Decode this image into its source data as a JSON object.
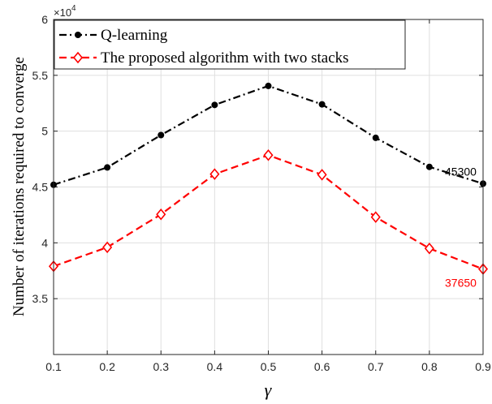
{
  "chart_data": {
    "type": "line",
    "xlabel": "γ",
    "ylabel": "Number of iterations required to converge",
    "x": [
      0.1,
      0.2,
      0.3,
      0.4,
      0.5,
      0.6,
      0.7,
      0.8,
      0.9
    ],
    "x_tick_labels": [
      "0.1",
      "0.2",
      "0.3",
      "0.4",
      "0.5",
      "0.6",
      "0.7",
      "0.8",
      "0.9"
    ],
    "y_tick_labels": [
      "3.5",
      "4",
      "4.5",
      "5",
      "5.5",
      "6"
    ],
    "y_tick_values": [
      3.5,
      4,
      4.5,
      5,
      5.5,
      6
    ],
    "y_exponent_label": "×10",
    "y_exponent_power": "4",
    "xlim": [
      0.1,
      0.9
    ],
    "ylim": [
      3.0,
      6.0
    ],
    "grid": true,
    "legend_position": "top-left",
    "series": [
      {
        "name": "Q-learning",
        "color": "#000000",
        "marker": "circle",
        "line_style": "dash-dot",
        "values": [
          4.52,
          4.675,
          4.965,
          5.235,
          5.405,
          5.24,
          4.94,
          4.68,
          4.53
        ]
      },
      {
        "name": "The proposed algorithm with two stacks",
        "color": "#ff0000",
        "marker": "diamond",
        "line_style": "dashed",
        "values": [
          3.79,
          3.96,
          4.255,
          4.615,
          4.785,
          4.61,
          4.23,
          3.95,
          3.765
        ]
      }
    ],
    "annotations": [
      {
        "text": "45300",
        "series": 0,
        "color": "#000000"
      },
      {
        "text": "37650",
        "series": 1,
        "color": "#ff0000"
      }
    ]
  }
}
